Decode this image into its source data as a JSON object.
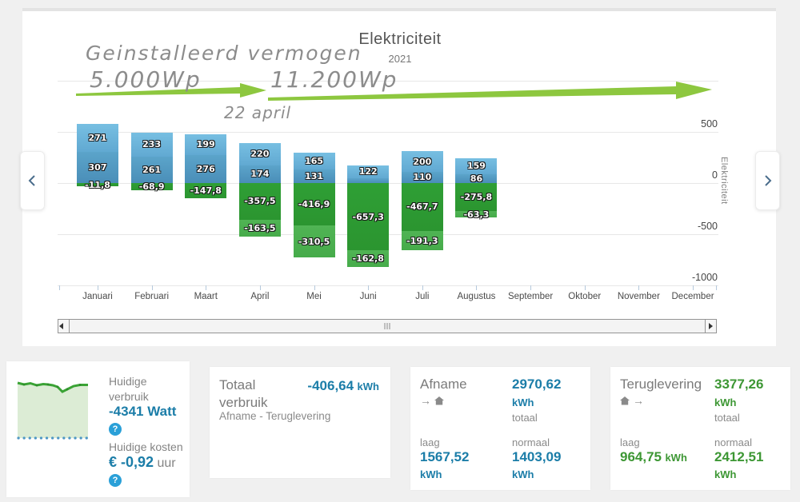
{
  "chart": {
    "title": "Elektriciteit",
    "subtitle": "2021",
    "y_axis_title": "Elektriciteit",
    "annotation": {
      "line1": "Geinstalleerd vermogen",
      "power_before": "5.000Wp",
      "power_after": "11.200Wp",
      "date_label": "22 april",
      "arrow_color": "#8dc73f"
    },
    "chart_data": {
      "type": "bar",
      "stacked": true,
      "categories": [
        "Januari",
        "Februari",
        "Maart",
        "April",
        "Mei",
        "Juni",
        "Juli",
        "Augustus",
        "September",
        "Oktober",
        "November",
        "December"
      ],
      "series": [
        {
          "name": "positive-upper-lightblue",
          "color_top": "#77bfe2",
          "color_bottom": "#61a9d2",
          "values": [
            271,
            233,
            199,
            220,
            165,
            122,
            200,
            159,
            null,
            null,
            null,
            null
          ],
          "labels": [
            "271",
            "233",
            "199",
            "220",
            "165",
            "122",
            "200",
            "159",
            null,
            null,
            null,
            null
          ]
        },
        {
          "name": "positive-lower-darkblue",
          "color_top": "#5ba4ca",
          "color_bottom": "#4a8eb8",
          "values": [
            307,
            261,
            276,
            174,
            131,
            50,
            110,
            86,
            null,
            null,
            null,
            null
          ],
          "labels": [
            "307",
            "261",
            "276",
            "174",
            "131",
            "",
            "110",
            "86",
            null,
            null,
            null,
            null
          ]
        },
        {
          "name": "negative-upper-darkgreen",
          "color_top": "#2f9f35",
          "color_bottom": "#2b9530",
          "values": [
            -11.8,
            -68.9,
            -147.8,
            -357.5,
            -416.9,
            -657.3,
            -467.7,
            -275.8,
            null,
            null,
            null,
            null
          ],
          "labels": [
            "-11,8",
            "-68,9",
            "-147,8",
            "-357,5",
            "-416,9",
            "-657,3",
            "-467,7",
            "-275,8",
            null,
            null,
            null,
            null
          ]
        },
        {
          "name": "negative-lower-lightgreen",
          "color_top": "#50b454",
          "color_bottom": "#46ab4a",
          "values": [
            null,
            null,
            null,
            -163.5,
            -310.5,
            -162.8,
            -191.3,
            -63.3,
            null,
            null,
            null,
            null
          ],
          "labels": [
            null,
            null,
            null,
            "-163,5",
            "-310,5",
            "-162,8",
            "-191,3",
            "-63,3",
            null,
            null,
            null,
            null
          ]
        }
      ],
      "y_ticks": [
        {
          "value": 1000,
          "label": ""
        },
        {
          "value": 500,
          "label": "500"
        },
        {
          "value": 0,
          "label": "0"
        },
        {
          "value": -500,
          "label": "-500"
        },
        {
          "value": -1000,
          "label": "-1000"
        }
      ],
      "ylim": [
        -1000,
        1000
      ],
      "grid": true,
      "legend": "none"
    }
  },
  "colors": {
    "accent_blue": "#1b7da8",
    "accent_green": "#3d9734",
    "help_blue": "#2aa0d8",
    "arrow_green": "#8dc73f"
  },
  "cards": {
    "current": {
      "title": "Huidige verbruik",
      "value": "-4341 Watt",
      "help": "?",
      "costs_title": "Huidige kosten",
      "costs_value": "€ -0,92",
      "costs_unit": "uur"
    },
    "total": {
      "title": "Totaal verbruik",
      "value": "-406,64",
      "unit": "kWh",
      "subtitle": "Afname - Teruglevering"
    },
    "afname": {
      "title": "Afname",
      "total_value": "2970,62",
      "total_unit": "kWh",
      "total_caption": "totaal",
      "laag_caption": "laag",
      "laag_value": "1567,52",
      "laag_unit": "kWh",
      "normaal_caption": "normaal",
      "normaal_value": "1403,09",
      "normaal_unit": "kWh"
    },
    "teruglevering": {
      "title": "Teruglevering",
      "total_value": "3377,26",
      "total_unit": "kWh",
      "total_caption": "totaal",
      "laag_caption": "laag",
      "laag_value": "964,75",
      "laag_unit": "kWh",
      "normaal_caption": "normaal",
      "normaal_value": "2412,51",
      "normaal_unit": "kWh"
    }
  }
}
